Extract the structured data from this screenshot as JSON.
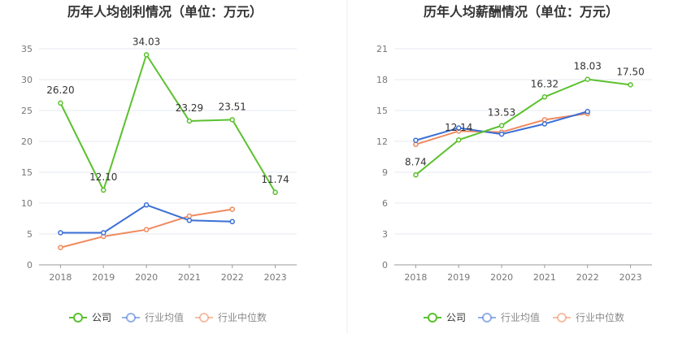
{
  "colors": {
    "company": "#5bc12e",
    "industry_avg": "#3b6fd6",
    "industry_median": "#ef8a5d",
    "grid": "#e6e9f0",
    "axis": "#999999",
    "tick": "#777777",
    "label": "#333333"
  },
  "legend": {
    "company": "公司",
    "industry_avg": "行业均值",
    "industry_median": "行业中位数"
  },
  "chart_data": [
    {
      "type": "line",
      "title": "历年人均创利情况（单位：万元）",
      "categories": [
        "2018",
        "2019",
        "2020",
        "2021",
        "2022",
        "2023"
      ],
      "ylim": [
        0,
        35
      ],
      "yticks": [
        0,
        5,
        10,
        15,
        20,
        25,
        30,
        35
      ],
      "grid": true,
      "legend_position": "bottom",
      "series": [
        {
          "key": "company",
          "name": "公司",
          "values": [
            26.2,
            12.1,
            34.03,
            23.29,
            23.51,
            11.74
          ],
          "labels": [
            "26.20",
            "12.10",
            "34.03",
            "23.29",
            "23.51",
            "11.74"
          ]
        },
        {
          "key": "industry_avg",
          "name": "行业均值",
          "values": [
            5.2,
            5.2,
            9.7,
            7.2,
            7.0,
            null
          ]
        },
        {
          "key": "industry_median",
          "name": "行业中位数",
          "values": [
            2.8,
            4.6,
            5.7,
            7.9,
            9.0,
            null
          ]
        }
      ]
    },
    {
      "type": "line",
      "title": "历年人均薪酬情况（单位：万元）",
      "categories": [
        "2018",
        "2019",
        "2020",
        "2021",
        "2022",
        "2023"
      ],
      "ylim": [
        0,
        21
      ],
      "yticks": [
        0,
        3,
        6,
        9,
        12,
        15,
        18,
        21
      ],
      "grid": true,
      "legend_position": "bottom",
      "series": [
        {
          "key": "company",
          "name": "公司",
          "values": [
            8.74,
            12.14,
            13.53,
            16.32,
            18.03,
            17.5
          ],
          "labels": [
            "8.74",
            "12.14",
            "13.53",
            "16.32",
            "18.03",
            "17.50"
          ]
        },
        {
          "key": "industry_avg",
          "name": "行业均值",
          "values": [
            12.1,
            13.3,
            12.7,
            13.7,
            14.9,
            null
          ]
        },
        {
          "key": "industry_median",
          "name": "行业中位数",
          "values": [
            11.7,
            13.0,
            12.9,
            14.1,
            14.7,
            null
          ]
        }
      ]
    }
  ]
}
